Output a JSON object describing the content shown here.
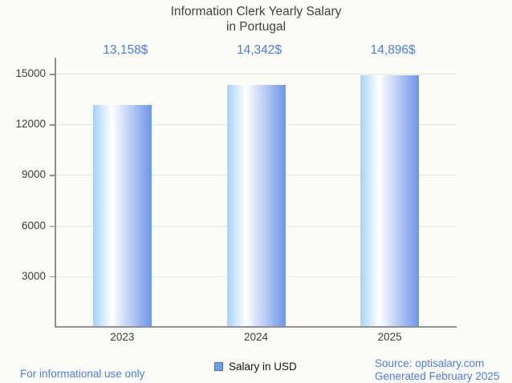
{
  "title": {
    "line1": "Information Clerk Yearly Salary",
    "line2": "in Portugal"
  },
  "chart_data": {
    "type": "bar",
    "title": "Information Clerk Yearly Salary in Portugal",
    "categories": [
      "2023",
      "2024",
      "2025"
    ],
    "series": [
      {
        "name": "Salary in USD",
        "values": [
          13158,
          14342,
          14896
        ]
      }
    ],
    "value_labels": [
      "13,158$",
      "14,342$",
      "14,896$"
    ],
    "xlabel": "",
    "ylabel": "",
    "ylim": [
      0,
      15950
    ],
    "yticks": [
      3000,
      6000,
      9000,
      12000,
      15000
    ],
    "grid": true,
    "legend_position": "bottom-center"
  },
  "legend": {
    "label": "Salary in USD"
  },
  "footer": {
    "disclaimer": "For informational use only",
    "source": "Source: optisalary.com",
    "generated": "Generated February 2025"
  },
  "colors": {
    "background": "#fbfbf8",
    "title_text": "#3f3f3f",
    "axis_text": "#3c3c3c",
    "axis_line": "#8f8f8f",
    "gridline": "#e5e5e1",
    "value_label_text": "#4c7de2",
    "footer_text": "#4c7de2",
    "bar_gradient_left": "#a6d2fb",
    "bar_gradient_mid": "#ffffff",
    "bar_gradient_right": "#6d95e9",
    "legend_swatch_fill": "#6aa1e8",
    "legend_swatch_border": "#3a74c8"
  }
}
